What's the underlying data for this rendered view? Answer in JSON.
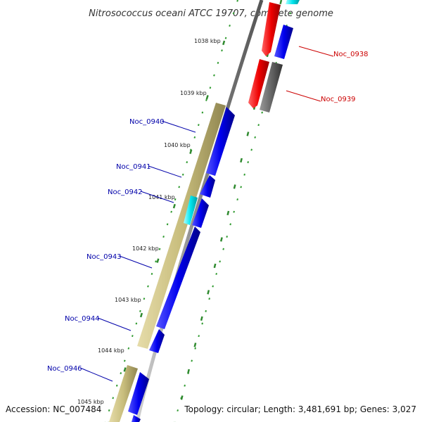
{
  "title": "Nitrosococcus oceani ATCC 19707, complete genome",
  "footer": {
    "accession": "Accession: NC_007484",
    "info": "Topology: circular; Length: 3,481,691 bp; Genes: 3,027"
  },
  "scale_labels": [
    "1038 kbp",
    "1039 kbp",
    "1040 kbp",
    "1041 kbp",
    "1042 kbp",
    "1043 kbp",
    "1044 kbp",
    "1045 kbp"
  ],
  "gene_labels": [
    {
      "text": "Noc_0938",
      "color": "#cc0000"
    },
    {
      "text": "Noc_0939",
      "color": "#cc0000"
    },
    {
      "text": "Noc_0940",
      "color": "#0000aa"
    },
    {
      "text": "Noc_0941",
      "color": "#0000aa"
    },
    {
      "text": "Noc_0942",
      "color": "#0000aa"
    },
    {
      "text": "Noc_0943",
      "color": "#0000aa"
    },
    {
      "text": "Noc_0944",
      "color": "#0000aa"
    },
    {
      "text": "Noc_0946",
      "color": "#0000aa"
    }
  ],
  "colors": {
    "backbone": "#8a8a8a",
    "cds_blue": "#0000ee",
    "cds_red": "#ee0000",
    "cds_grey": "#666666",
    "cds_cyan": "#00e5ee",
    "cds_khaki": "#c8bd7c",
    "tick_green": "#2f8a2f",
    "dot_green": "#2f9a2f"
  }
}
